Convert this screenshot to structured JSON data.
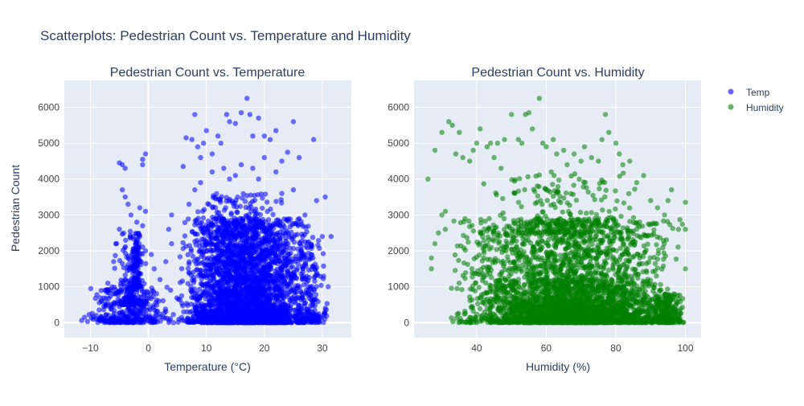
{
  "title": "Scatterplots: Pedestrian Count vs. Temperature and Humidity",
  "colors": {
    "temp": "#0000ff",
    "humidity": "#008000",
    "plot_bg": "#e5ecf6",
    "grid": "#ffffff",
    "text": "#2a3f5f",
    "tick_text": "#444444"
  },
  "legend": [
    {
      "name": "Temp",
      "color": "#0000ff"
    },
    {
      "name": "Humidity",
      "color": "#008000"
    }
  ],
  "chart_data": [
    {
      "type": "scatter",
      "title": "Pedestrian Count vs. Temperature",
      "xlabel": "Temperature (°C)",
      "ylabel": "Pedestrian Count",
      "xlim": [
        -14.5,
        35
      ],
      "ylim": [
        -420,
        6750
      ],
      "xticks": [
        -10,
        0,
        10,
        20,
        30
      ],
      "yticks": [
        0,
        1000,
        2000,
        3000,
        4000,
        5000,
        6000
      ],
      "series": [
        {
          "name": "Temp",
          "color": "#0000ff",
          "points": [
            [
              -11.5,
              60
            ],
            [
              -11,
              150
            ],
            [
              -10.5,
              30
            ],
            [
              -9.5,
              90
            ],
            [
              -9,
              200
            ],
            [
              -8.5,
              350
            ],
            [
              -8,
              600
            ],
            [
              -7.5,
              900
            ],
            [
              -7,
              1100
            ],
            [
              -6,
              1700
            ],
            [
              -5.5,
              2200
            ],
            [
              -5,
              2600
            ],
            [
              -5,
              4450
            ],
            [
              -4.5,
              3700
            ],
            [
              -4.5,
              4400
            ],
            [
              -4,
              3500
            ],
            [
              -4,
              4300
            ],
            [
              -3.5,
              3300
            ],
            [
              -3,
              3000
            ],
            [
              -2,
              2800
            ],
            [
              -1.5,
              3200
            ],
            [
              -1,
              4550
            ],
            [
              -1,
              4400
            ],
            [
              -0.5,
              4700
            ],
            [
              -0.5,
              3100
            ],
            [
              -1,
              2700
            ],
            [
              -2,
              1900
            ],
            [
              -3,
              1500
            ],
            [
              -4,
              1200
            ],
            [
              -1.5,
              2400
            ],
            [
              -0.5,
              2000
            ],
            [
              0.5,
              1900
            ],
            [
              1,
              1500
            ],
            [
              2,
              1200
            ],
            [
              3,
              1700
            ],
            [
              4,
              2200
            ],
            [
              3.5,
              2600
            ],
            [
              4,
              3000
            ],
            [
              6,
              4350
            ],
            [
              6.5,
              5150
            ],
            [
              7.5,
              5100
            ],
            [
              8,
              5800
            ],
            [
              8.5,
              4900
            ],
            [
              9,
              4600
            ],
            [
              9.5,
              5000
            ],
            [
              10,
              5350
            ],
            [
              11,
              4700
            ],
            [
              12,
              5200
            ],
            [
              12.5,
              5000
            ],
            [
              13.5,
              5800
            ],
            [
              14,
              5600
            ],
            [
              15,
              5550
            ],
            [
              16,
              5850
            ],
            [
              17,
              6250
            ],
            [
              17.5,
              5800
            ],
            [
              18,
              5200
            ],
            [
              19,
              5700
            ],
            [
              20,
              5200
            ],
            [
              21,
              5100
            ],
            [
              22,
              5350
            ],
            [
              23,
              4500
            ],
            [
              24,
              4750
            ],
            [
              25,
              5600
            ],
            [
              26,
              4600
            ],
            [
              28.5,
              5100
            ],
            [
              29,
              3400
            ],
            [
              30,
              2400
            ],
            [
              30.5,
              3500
            ],
            [
              31,
              1000
            ],
            [
              31.5,
              2400
            ],
            [
              30.5,
              400
            ],
            [
              28,
              1800
            ],
            [
              27,
              3000
            ],
            [
              26,
              2900
            ],
            [
              25,
              3700
            ],
            [
              23,
              3600
            ],
            [
              22,
              4200
            ],
            [
              20,
              4600
            ],
            [
              19,
              4000
            ],
            [
              18,
              4300
            ],
            [
              16,
              4400
            ],
            [
              15,
              4100
            ],
            [
              14,
              4000
            ],
            [
              13,
              4300
            ],
            [
              11,
              4200
            ],
            [
              9,
              3900
            ],
            [
              8,
              3700
            ],
            [
              7,
              3300
            ],
            [
              26,
              300
            ],
            [
              27,
              100
            ],
            [
              22,
              50
            ],
            [
              20,
              30
            ]
          ],
          "dense_regions": [
            {
              "x": [
                5,
                29
              ],
              "y": [
                0,
                2900
              ],
              "n": 2600
            },
            {
              "x": [
                7,
                25
              ],
              "y": [
                0,
                3600
              ],
              "n": 700
            },
            {
              "x": [
                -11,
                5
              ],
              "y": [
                0,
                1000
              ],
              "n": 320
            },
            {
              "x": [
                -6,
                0
              ],
              "y": [
                500,
                2600
              ],
              "n": 160
            },
            {
              "x": [
                -3,
                -1
              ],
              "y": [
                1000,
                2500
              ],
              "n": 120
            },
            {
              "x": [
                25,
                31
              ],
              "y": [
                0,
                2500
              ],
              "n": 160
            }
          ]
        }
      ]
    },
    {
      "type": "scatter",
      "title": "Pedestrian Count vs. Humidity",
      "xlabel": "Humidity (%)",
      "ylabel": "",
      "xlim": [
        22,
        104.5
      ],
      "ylim": [
        -420,
        6750
      ],
      "xticks": [
        40,
        60,
        80,
        100
      ],
      "yticks": [
        0,
        1000,
        2000,
        3000,
        4000,
        5000,
        6000
      ],
      "series": [
        {
          "name": "Humidity",
          "color": "#008000",
          "points": [
            [
              26,
              4000
            ],
            [
              27,
              1800
            ],
            [
              28,
              4800
            ],
            [
              29,
              2500
            ],
            [
              30,
              5300
            ],
            [
              31,
              3100
            ],
            [
              32,
              5600
            ],
            [
              33,
              5500
            ],
            [
              34,
              4700
            ],
            [
              35,
              5300
            ],
            [
              36,
              4600
            ],
            [
              38,
              4500
            ],
            [
              39,
              4800
            ],
            [
              40,
              5000
            ],
            [
              41,
              5400
            ],
            [
              43,
              4900
            ],
            [
              44,
              5000
            ],
            [
              45,
              4600
            ],
            [
              46,
              5000
            ],
            [
              47,
              4300
            ],
            [
              48,
              5100
            ],
            [
              50,
              5800
            ],
            [
              52,
              5100
            ],
            [
              53,
              5000
            ],
            [
              54,
              5800
            ],
            [
              55,
              5850
            ],
            [
              56,
              5400
            ],
            [
              58,
              6250
            ],
            [
              59,
              5000
            ],
            [
              60,
              4900
            ],
            [
              62,
              5100
            ],
            [
              63,
              4700
            ],
            [
              65,
              4800
            ],
            [
              66,
              4400
            ],
            [
              68,
              4700
            ],
            [
              70,
              4500
            ],
            [
              71,
              4900
            ],
            [
              73,
              4600
            ],
            [
              75,
              4500
            ],
            [
              76,
              5100
            ],
            [
              77,
              5800
            ],
            [
              78,
              5300
            ],
            [
              80,
              5000
            ],
            [
              81,
              4700
            ],
            [
              82,
              4400
            ],
            [
              84,
              4500
            ],
            [
              86,
              3900
            ],
            [
              88,
              4100
            ],
            [
              90,
              3400
            ],
            [
              92,
              3200
            ],
            [
              94,
              3000
            ],
            [
              95,
              3400
            ],
            [
              96,
              3700
            ],
            [
              98,
              2600
            ],
            [
              100,
              3350
            ],
            [
              100,
              2600
            ],
            [
              100,
              1500
            ],
            [
              38,
              0
            ],
            [
              40,
              0
            ],
            [
              30,
              3000
            ],
            [
              28,
              2200
            ],
            [
              27,
              1500
            ],
            [
              31,
              2600
            ]
          ],
          "dense_regions": [
            {
              "x": [
                32,
                100
              ],
              "y": [
                0,
                2900
              ],
              "n": 2700
            },
            {
              "x": [
                45,
                95
              ],
              "y": [
                0,
                1200
              ],
              "n": 900
            },
            {
              "x": [
                40,
                88
              ],
              "y": [
                2500,
                4200
              ],
              "n": 220
            },
            {
              "x": [
                90,
                100
              ],
              "y": [
                0,
                800
              ],
              "n": 200
            }
          ]
        }
      ]
    }
  ]
}
